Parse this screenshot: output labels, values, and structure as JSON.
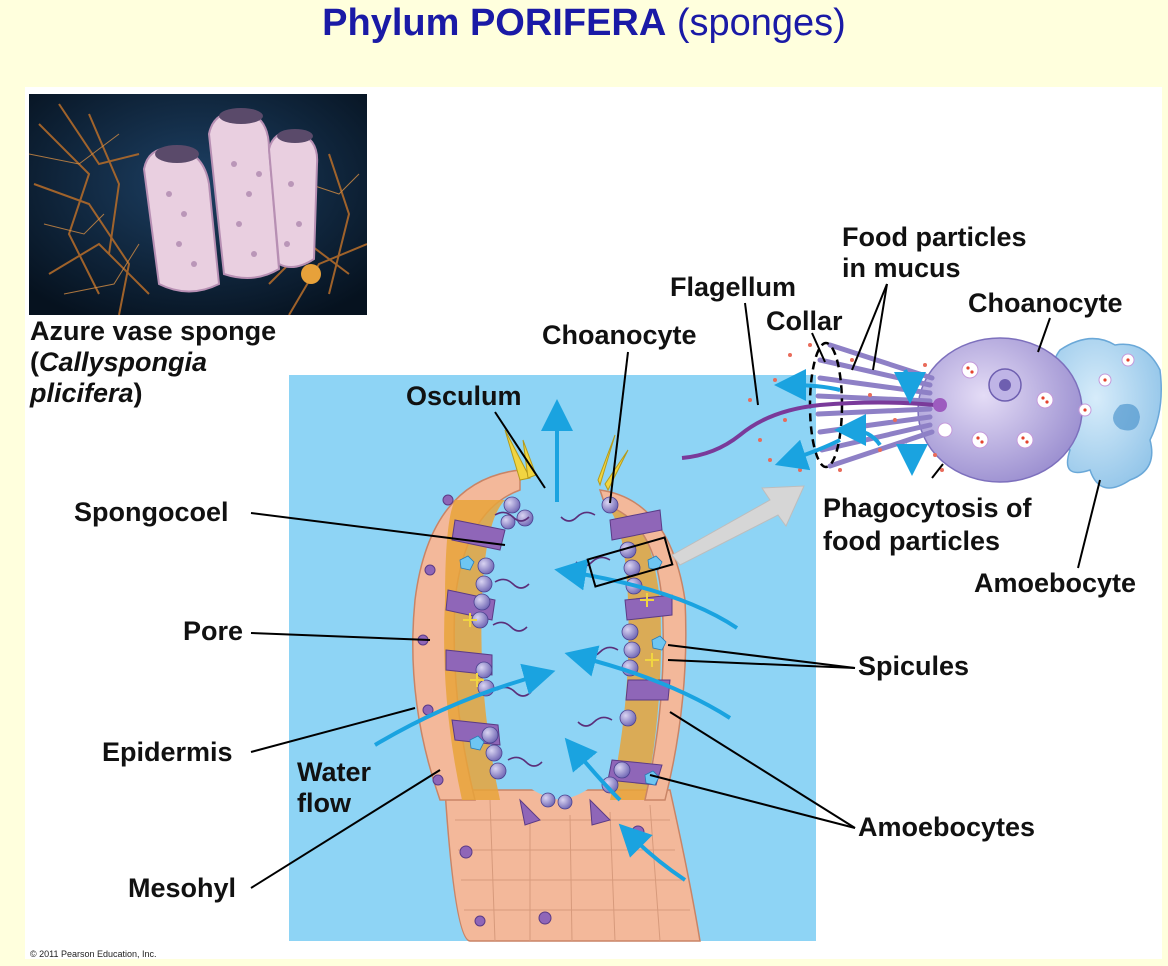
{
  "title": {
    "bold": "Phylum PORIFERA",
    "rest": " (sponges)"
  },
  "caption": {
    "line1": "Azure vase sponge",
    "open": "(",
    "genus": "Callyspongia",
    "species": "plicifera",
    "close": ")"
  },
  "labels": {
    "osculum": "Osculum",
    "choanocyte_center": "Choanocyte",
    "spongocoel": "Spongocoel",
    "pore": "Pore",
    "epidermis": "Epidermis",
    "water_flow_1": "Water",
    "water_flow_2": "flow",
    "mesohyl": "Mesohyl",
    "spicules": "Spicules",
    "amoebocytes": "Amoebocytes",
    "flagellum": "Flagellum",
    "collar": "Collar",
    "food_particles_1": "Food particles",
    "food_particles_2": "in mucus",
    "choanocyte_right": "Choanocyte",
    "phagocytosis_1": "Phagocytosis of",
    "phagocytosis_2": "food particles",
    "amoebocyte": "Amoebocyte"
  },
  "copyright": "© 2011 Pearson Education, Inc.",
  "colors": {
    "title": "#1a1aa6",
    "water_background": "#8ed4f5",
    "arrow_blue": "#1aa3e0",
    "epidermis": "#f3b89a",
    "mesohyl": "#e8a33a",
    "choanocyte": "#9b8fd0",
    "amoebocyte": "#a9d3f0"
  }
}
